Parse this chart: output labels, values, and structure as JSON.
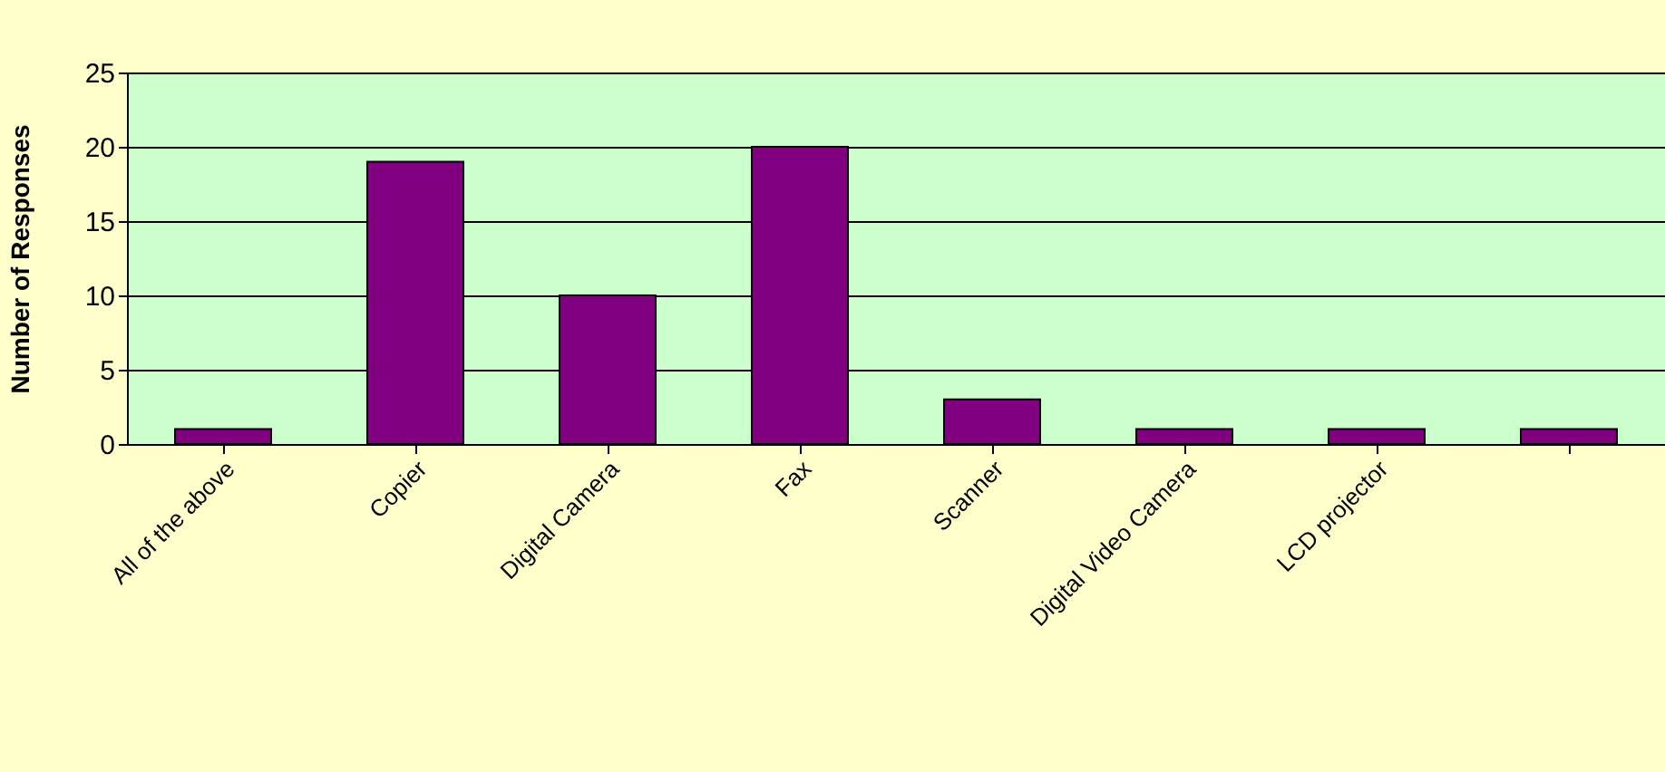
{
  "chart_data": {
    "type": "bar",
    "ylabel": "Number of Responses",
    "categories": [
      "All of the above",
      "Copier",
      "Digital Camera",
      "Fax",
      "Scanner",
      "Digital Video Camera",
      "LCD projector",
      null
    ],
    "values": [
      1,
      19,
      10,
      20,
      3,
      1,
      1,
      1
    ],
    "color": "#800080",
    "ylim": [
      0,
      25
    ],
    "yticks": [
      0,
      5,
      10,
      15,
      20,
      25
    ],
    "grid": "y"
  }
}
